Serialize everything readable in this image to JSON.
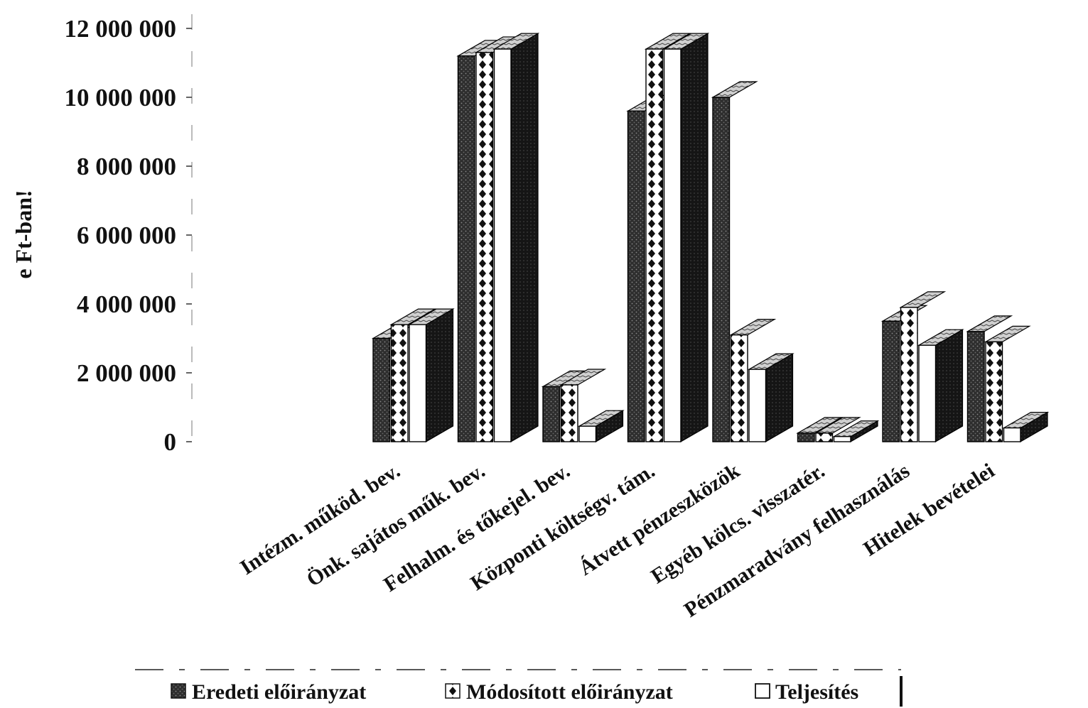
{
  "chart_data": {
    "type": "bar",
    "subtype": "3d-clustered-column",
    "title": "",
    "xlabel": "",
    "ylabel": "e Ft-ban!",
    "ylim": [
      0,
      12000000
    ],
    "yticks": [
      "0",
      "2 000 000",
      "4 000 000",
      "6 000 000",
      "8 000 000",
      "10 000 000",
      "12 000 000"
    ],
    "categories": [
      "Intézm. működ. bev.",
      "Önk. sajátos műk. bev.",
      "Felhalm. és tőkejel. bev.",
      "Központi költségv. tám.",
      "Átvett pénzeszközök",
      "Egyéb kölcs. visszatér.",
      "Pénzmaradvány felhasználás",
      "Hitelek bevételei"
    ],
    "series": [
      {
        "name": "Eredeti előirányzat",
        "pattern": "dark-dotted",
        "values": [
          3000000,
          11200000,
          1600000,
          9600000,
          10000000,
          250000,
          3500000,
          3200000
        ]
      },
      {
        "name": "Módosított előirányzat",
        "pattern": "diamond-checker",
        "values": [
          3400000,
          11300000,
          1650000,
          11400000,
          3100000,
          250000,
          3900000,
          2900000
        ]
      },
      {
        "name": "Teljesítés",
        "pattern": "white",
        "values": [
          3400000,
          11400000,
          450000,
          11400000,
          2100000,
          150000,
          2800000,
          400000
        ]
      }
    ],
    "grid": false,
    "legend_position": "bottom"
  }
}
